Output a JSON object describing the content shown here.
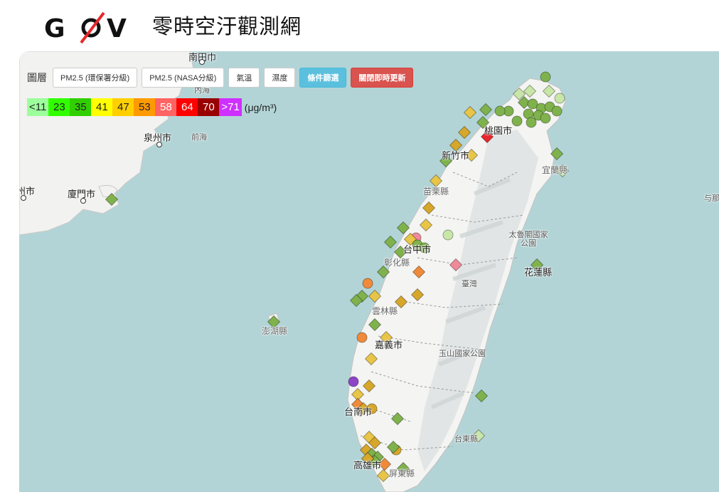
{
  "header": {
    "logo_text": "GOV",
    "title": "零時空汙觀測網"
  },
  "toolbar": {
    "layer_label": "圖層",
    "buttons": [
      {
        "label": "PM2.5 (環保署分級)"
      },
      {
        "label": "PM2.5 (NASA分級)"
      },
      {
        "label": "氣溫"
      },
      {
        "label": "濕度"
      },
      {
        "label": "條件篩選"
      },
      {
        "label": "關閉即時更新"
      }
    ]
  },
  "legend": {
    "items": [
      {
        "label": "<11",
        "color": "#9cff9c",
        "text_color": "#222"
      },
      {
        "label": "23",
        "color": "#31ff00",
        "text_color": "#222"
      },
      {
        "label": "35",
        "color": "#31cf00",
        "text_color": "#222"
      },
      {
        "label": "41",
        "color": "#ffff00",
        "text_color": "#222"
      },
      {
        "label": "47",
        "color": "#ffcf00",
        "text_color": "#222"
      },
      {
        "label": "53",
        "color": "#ff9a00",
        "text_color": "#222"
      },
      {
        "label": "58",
        "color": "#ff6464",
        "text_color": "#fff"
      },
      {
        "label": "64",
        "color": "#ff0000",
        "text_color": "#fff"
      },
      {
        "label": "70",
        "color": "#990000",
        "text_color": "#fff"
      },
      {
        "label": ">71",
        "color": "#ce30ff",
        "text_color": "#fff"
      }
    ],
    "unit": "(μg/m³)"
  },
  "map_labels": {
    "top_city": "南田巾",
    "quanzhou": "泉州市",
    "qianhai": "前海",
    "xiamen": "廈門市",
    "zhangzhou": "州市",
    "taoyuan": "桃園市",
    "hsinchu": "新竹市",
    "miaoli": "苗栗縣",
    "yilan": "宜蘭縣",
    "taichung": "台中市",
    "changhua": "彰化縣",
    "taroko": "太魯閣國家公園",
    "hualien": "花蓮縣",
    "taiwan": "臺灣",
    "yunlin": "雲林縣",
    "penghu": "澎湖縣",
    "chiayi": "嘉義市",
    "yushan": "玉山國家公園",
    "tainan": "台南市",
    "taitung": "台東縣",
    "kaohsiung": "高雄市",
    "pingtung": "屏東縣",
    "yonaguni": "与那",
    "neihai": "內海"
  },
  "markers": {
    "colors": {
      "green": "#7fb24c",
      "yellow": "#e8c547",
      "gold": "#d6a72a",
      "orange": "#f08a3a",
      "pink": "#f08a9a",
      "red": "#e8262b",
      "purple": "#8e44c8",
      "lightgreen": "#c8e6a8"
    }
  }
}
